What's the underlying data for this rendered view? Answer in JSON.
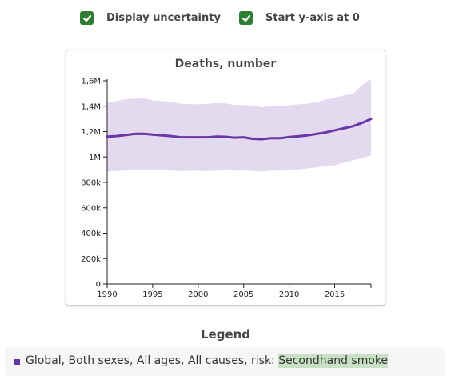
{
  "controls": {
    "uncertainty_label": "Display uncertainty",
    "uncertainty_checked": true,
    "start_zero_label": "Start y-axis at 0",
    "start_zero_checked": true,
    "check_color": "#2e7d32"
  },
  "chart_data": {
    "type": "line",
    "title": "Deaths, number",
    "xlabel": "",
    "ylabel": "",
    "x_ticks": [
      "1990",
      "1995",
      "2000",
      "2005",
      "2010",
      "2015"
    ],
    "y_ticks": [
      "0",
      "200k",
      "400k",
      "600k",
      "800k",
      "1M",
      "1,2M",
      "1,4M",
      "1,6M"
    ],
    "xlim": [
      1990,
      2019
    ],
    "ylim": [
      0,
      1600000
    ],
    "grid": false,
    "line_color": "#6a35a8",
    "band_color": "#e4daef",
    "x": [
      1990,
      1991,
      1992,
      1993,
      1994,
      1995,
      1996,
      1997,
      1998,
      1999,
      2000,
      2001,
      2002,
      2003,
      2004,
      2005,
      2006,
      2007,
      2008,
      2009,
      2010,
      2011,
      2012,
      2013,
      2014,
      2015,
      2016,
      2017,
      2018,
      2019
    ],
    "series": [
      {
        "name": "Global, Both sexes, All ages, All causes, risk: Secondhand smoke",
        "values": [
          1160000,
          1165000,
          1172000,
          1182000,
          1183000,
          1176000,
          1170000,
          1165000,
          1156000,
          1155000,
          1155000,
          1155000,
          1160000,
          1159000,
          1152000,
          1155000,
          1143000,
          1140000,
          1148000,
          1148000,
          1157000,
          1163000,
          1170000,
          1182000,
          1193000,
          1210000,
          1226000,
          1242000,
          1268000,
          1300000
        ],
        "lower": [
          885000,
          890000,
          895000,
          898000,
          898000,
          898000,
          898000,
          895000,
          888000,
          892000,
          892000,
          888000,
          893000,
          900000,
          892000,
          895000,
          890000,
          885000,
          893000,
          893000,
          895000,
          902000,
          910000,
          918000,
          928000,
          935000,
          955000,
          975000,
          990000,
          1012000
        ],
        "upper": [
          1430000,
          1440000,
          1455000,
          1460000,
          1462000,
          1445000,
          1440000,
          1435000,
          1420000,
          1418000,
          1415000,
          1418000,
          1425000,
          1422000,
          1410000,
          1410000,
          1405000,
          1392000,
          1402000,
          1400000,
          1408000,
          1415000,
          1420000,
          1432000,
          1450000,
          1468000,
          1485000,
          1498000,
          1565000,
          1615000
        ]
      }
    ]
  },
  "legend": {
    "title": "Legend",
    "item_prefix": "Global, Both sexes, All ages, All causes, risk:",
    "item_highlight": "Secondhand smoke",
    "swatch_color": "#6a35a8"
  }
}
